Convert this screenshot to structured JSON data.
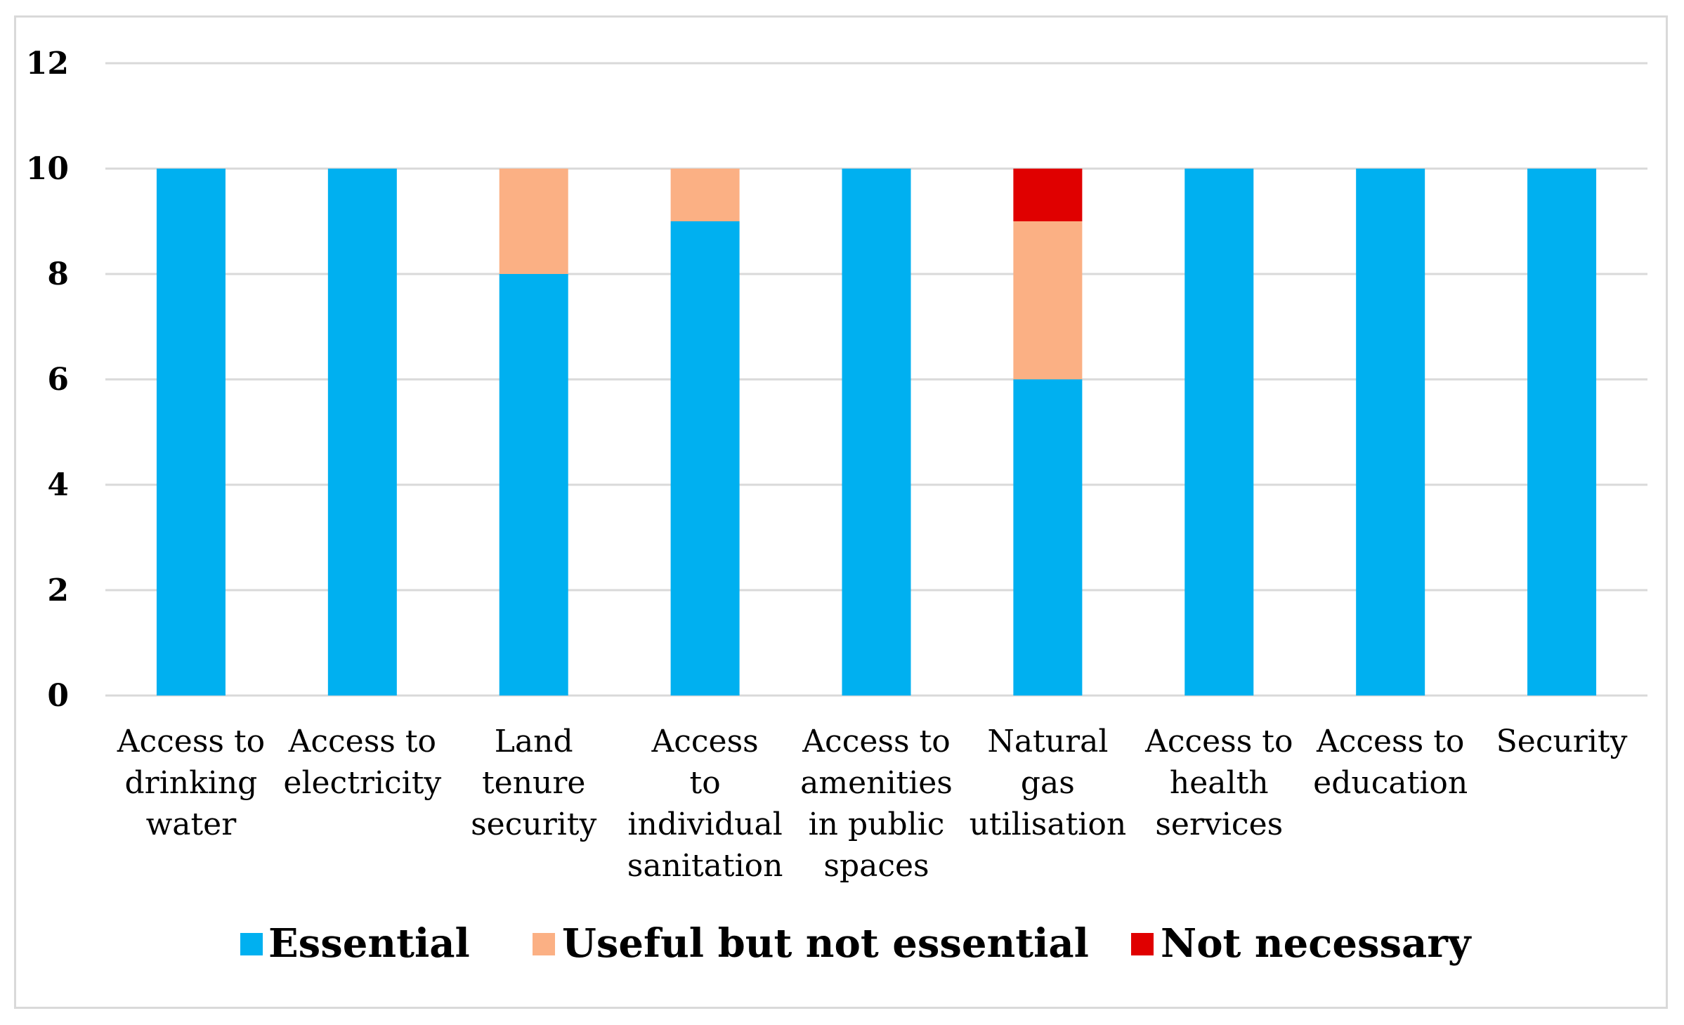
{
  "chart_data": {
    "type": "bar",
    "stacked": true,
    "title": "",
    "xlabel": "",
    "ylabel": "",
    "ylim": [
      0,
      12
    ],
    "yticks": [
      "0",
      "2",
      "4",
      "6",
      "8",
      "10",
      "12"
    ],
    "grid": true,
    "legend_position": "bottom",
    "categories": [
      [
        "Access to",
        "drinking",
        "water"
      ],
      [
        "Access to",
        "electricity"
      ],
      [
        "Land",
        "tenure",
        "security"
      ],
      [
        "Access",
        "to",
        "individual",
        "sanitation"
      ],
      [
        "Access to",
        "amenities",
        "in public",
        "spaces"
      ],
      [
        "Natural",
        "gas",
        "utilisation"
      ],
      [
        "Access to",
        "health",
        "services"
      ],
      [
        "Access to",
        "education"
      ],
      [
        "Security"
      ]
    ],
    "series": [
      {
        "name": "Essential",
        "color": "#00b0f0",
        "values": [
          10,
          10,
          8,
          9,
          10,
          6,
          10,
          10,
          10
        ]
      },
      {
        "name": "Useful but not essential",
        "color": "#fbb084",
        "values": [
          0,
          0,
          2,
          1,
          0,
          3,
          0,
          0,
          0
        ]
      },
      {
        "name": "Not necessary",
        "color": "#e00000",
        "values": [
          0,
          0,
          0,
          0,
          0,
          1,
          0,
          0,
          0
        ]
      }
    ]
  }
}
